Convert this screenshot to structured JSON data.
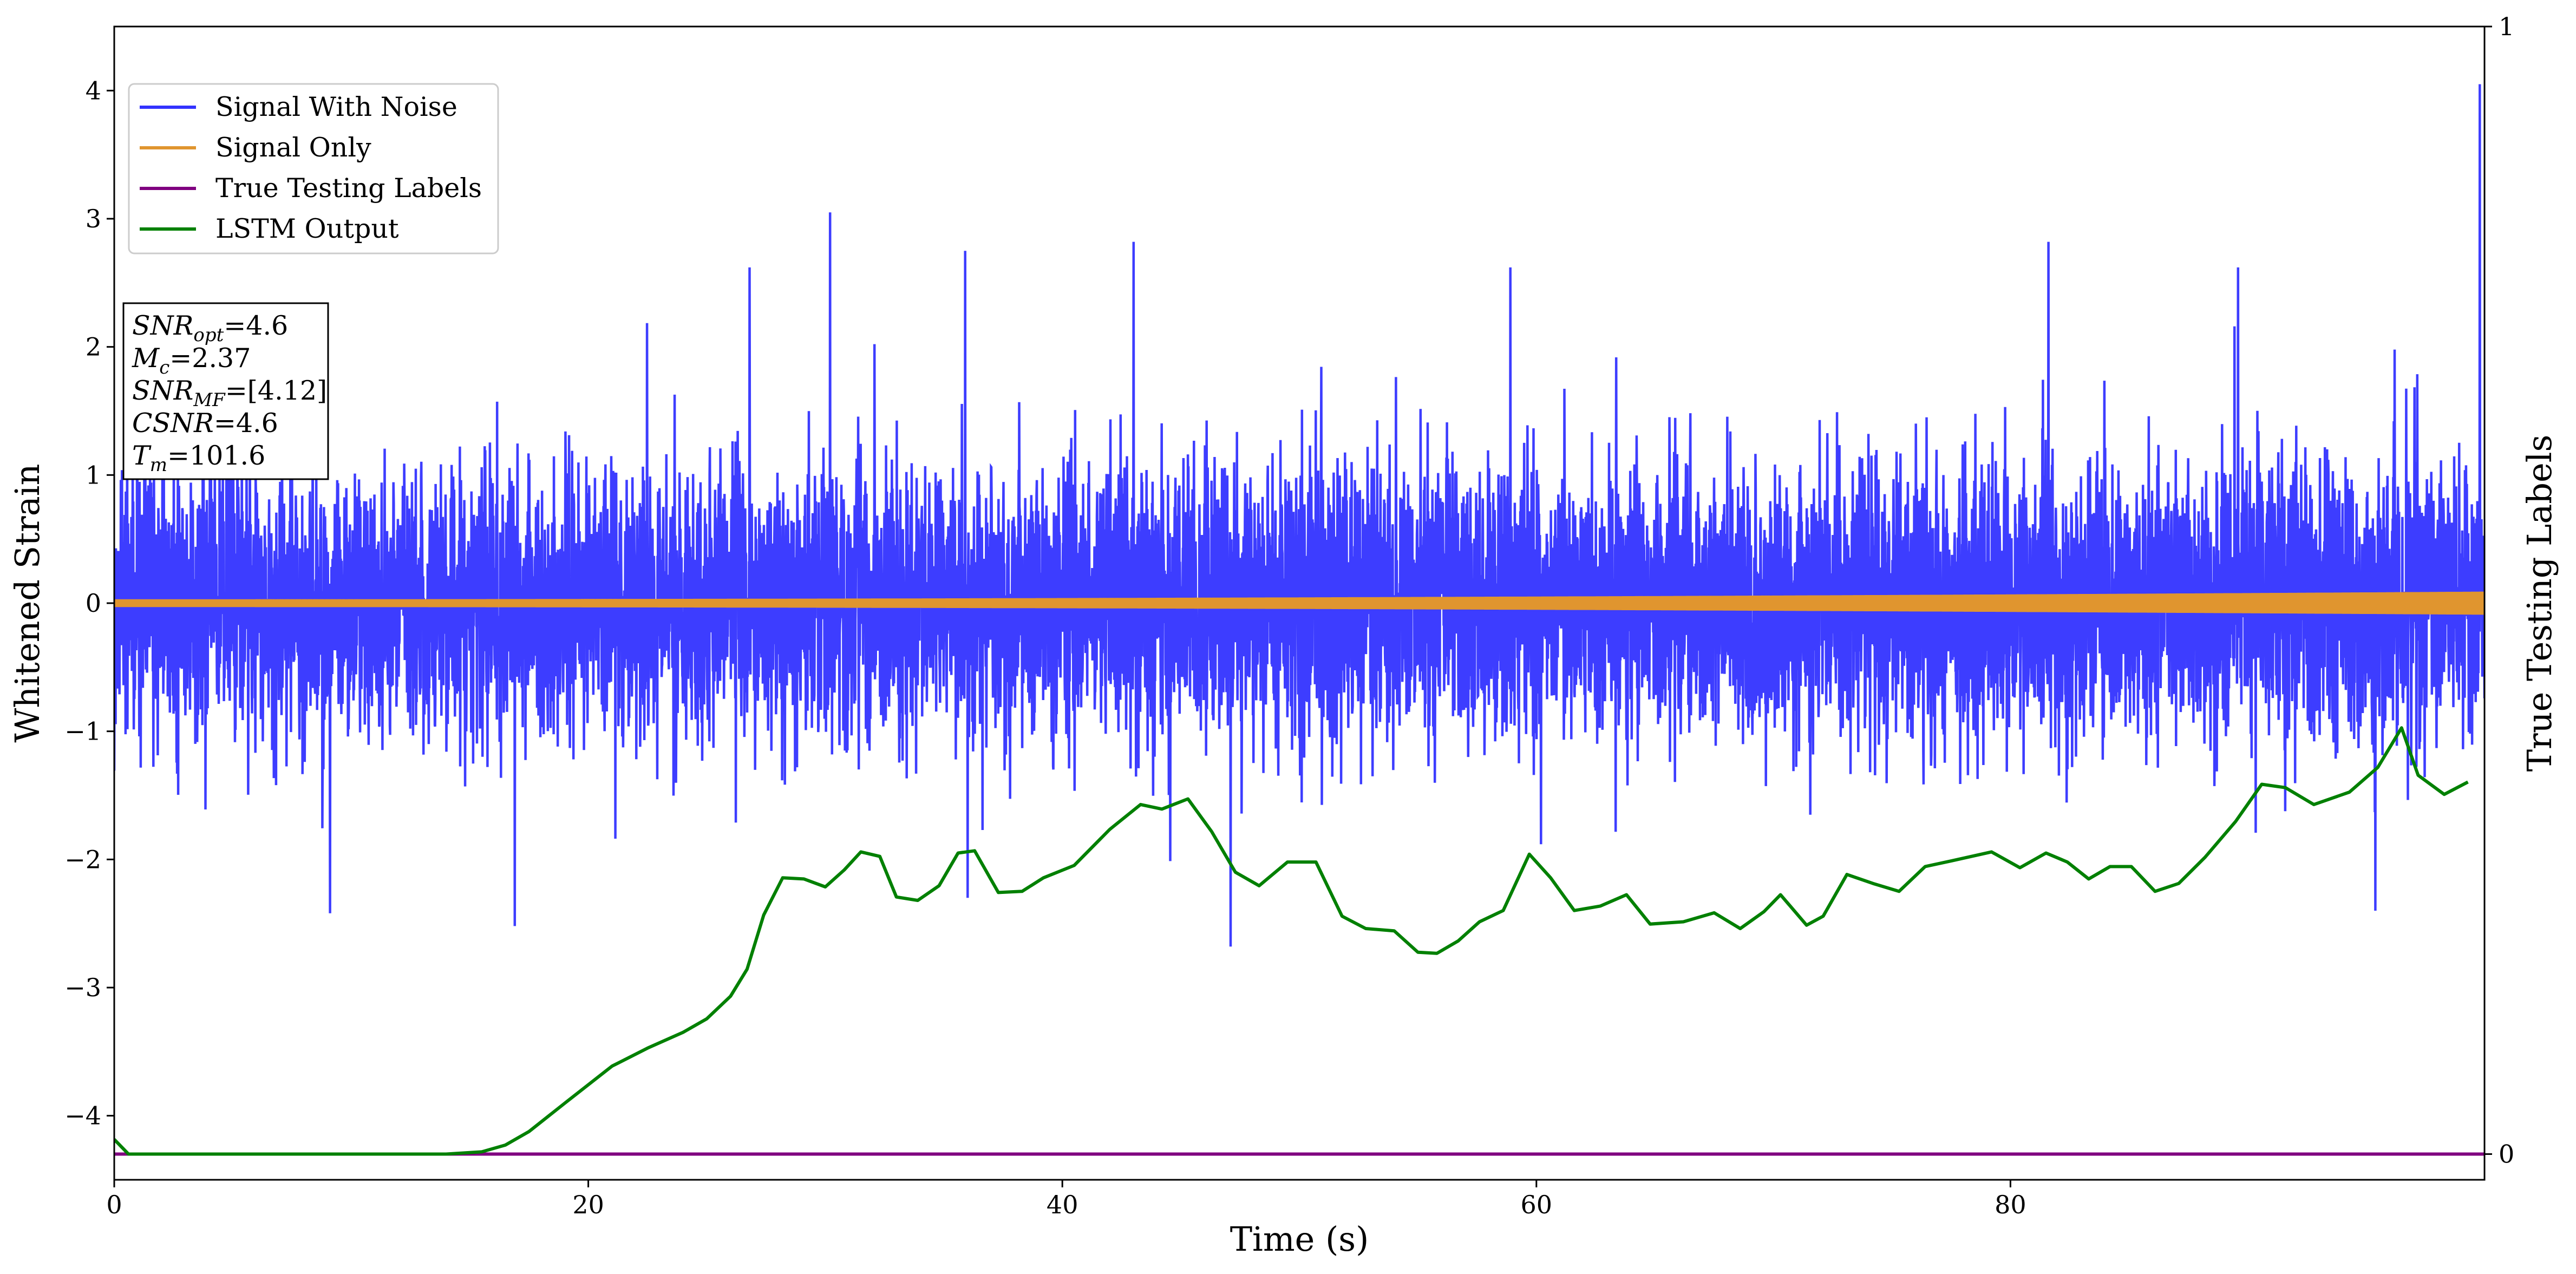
{
  "chart_data": {
    "type": "line",
    "xlabel": "Time (s)",
    "ylabel": "Whitened Strain",
    "ylabel_right": "True Testing Labels",
    "xlim": [
      0,
      100
    ],
    "ylim": [
      -4.5,
      4.5
    ],
    "ylim_right": [
      -0.0228,
      1.0
    ],
    "x_ticks": [
      0,
      20,
      40,
      60,
      80
    ],
    "y_ticks": [
      -4,
      -3,
      -2,
      -1,
      0,
      1,
      2,
      3,
      4
    ],
    "y_ticks_right": [
      0,
      1
    ],
    "grid": false,
    "legend_position": "upper-left",
    "series": [
      {
        "name": "Signal With Noise",
        "color": "#3333ff",
        "axis": "left",
        "style": "white noise, std ~0.55, peaks -2.7 to 3.05, final spike 4.05 at t=100",
        "peaks": [
          [
            30.2,
            3.05
          ],
          [
            35.9,
            2.75
          ],
          [
            43.0,
            2.82
          ],
          [
            26.8,
            2.62
          ],
          [
            58.9,
            2.62
          ],
          [
            81.6,
            2.82
          ],
          [
            89.6,
            2.62
          ],
          [
            99.8,
            4.05
          ],
          [
            16.9,
            -2.52
          ],
          [
            47.1,
            -2.68
          ],
          [
            36.0,
            -2.3
          ],
          [
            95.4,
            -2.4
          ],
          [
            9.1,
            -2.42
          ]
        ]
      },
      {
        "name": "Signal Only",
        "color": "#e0952f",
        "axis": "left",
        "style": "oscillating chirp, amplitude growing from ~0.03 to ~0.09"
      },
      {
        "name": "True Testing Labels",
        "color": "#800080",
        "axis": "right",
        "x": [
          0,
          100
        ],
        "y": [
          0,
          0
        ]
      },
      {
        "name": "LSTM Output",
        "color": "#008000",
        "axis": "right",
        "x": [
          0,
          0.6,
          2,
          5,
          10,
          14,
          15.5,
          16.5,
          17.5,
          19,
          21,
          22.5,
          24,
          25,
          26,
          26.7,
          27.4,
          28.2,
          29.1,
          30,
          30.8,
          31.5,
          32.3,
          33,
          33.9,
          34.8,
          35.6,
          36.3,
          37.3,
          38.3,
          39.2,
          40.5,
          42,
          43.3,
          44.2,
          45.3,
          46.3,
          47.3,
          48.3,
          49.5,
          50.7,
          51.8,
          52.8,
          54,
          55,
          55.8,
          56.7,
          57.6,
          58.6,
          59.7,
          60.6,
          61.6,
          62.7,
          63.8,
          64.8,
          66.2,
          67.5,
          68.6,
          69.6,
          70.3,
          71.4,
          72.1,
          73.1,
          74.2,
          75.3,
          76.4,
          77.5,
          79.2,
          80.4,
          81.5,
          82.4,
          83.3,
          84.2,
          85.1,
          86.1,
          87.1,
          88.2,
          89.5,
          90.6,
          91.6,
          92.8,
          94.3,
          95.5,
          96.5,
          97.2,
          98.3,
          99.3
        ],
        "y": [
          0.013,
          0.0,
          0.0,
          0.0,
          0.0,
          0.0,
          0.002,
          0.008,
          0.02,
          0.045,
          0.078,
          0.094,
          0.108,
          0.12,
          0.14,
          0.164,
          0.212,
          0.245,
          0.244,
          0.237,
          0.252,
          0.268,
          0.264,
          0.228,
          0.225,
          0.238,
          0.267,
          0.269,
          0.232,
          0.233,
          0.245,
          0.256,
          0.288,
          0.31,
          0.306,
          0.315,
          0.286,
          0.25,
          0.238,
          0.259,
          0.259,
          0.211,
          0.2,
          0.198,
          0.179,
          0.178,
          0.189,
          0.206,
          0.216,
          0.266,
          0.245,
          0.216,
          0.22,
          0.23,
          0.204,
          0.206,
          0.214,
          0.2,
          0.215,
          0.23,
          0.203,
          0.211,
          0.248,
          0.24,
          0.233,
          0.255,
          0.26,
          0.268,
          0.254,
          0.267,
          0.259,
          0.244,
          0.255,
          0.255,
          0.233,
          0.24,
          0.263,
          0.295,
          0.328,
          0.325,
          0.31,
          0.321,
          0.343,
          0.378,
          0.336,
          0.319,
          0.33
        ]
      }
    ],
    "annotation": {
      "lines": [
        {
          "base": "SNR",
          "sub": "opt",
          "value": "=4.6"
        },
        {
          "base": "M",
          "sub": "c",
          "value": "=2.37"
        },
        {
          "base": "SNR",
          "sub": "MF",
          "value": "=[4.12]"
        },
        {
          "base": "CSNR",
          "sub": "",
          "value": "=4.6"
        },
        {
          "base": "T",
          "sub": "m",
          "value": "=101.6"
        }
      ]
    }
  }
}
